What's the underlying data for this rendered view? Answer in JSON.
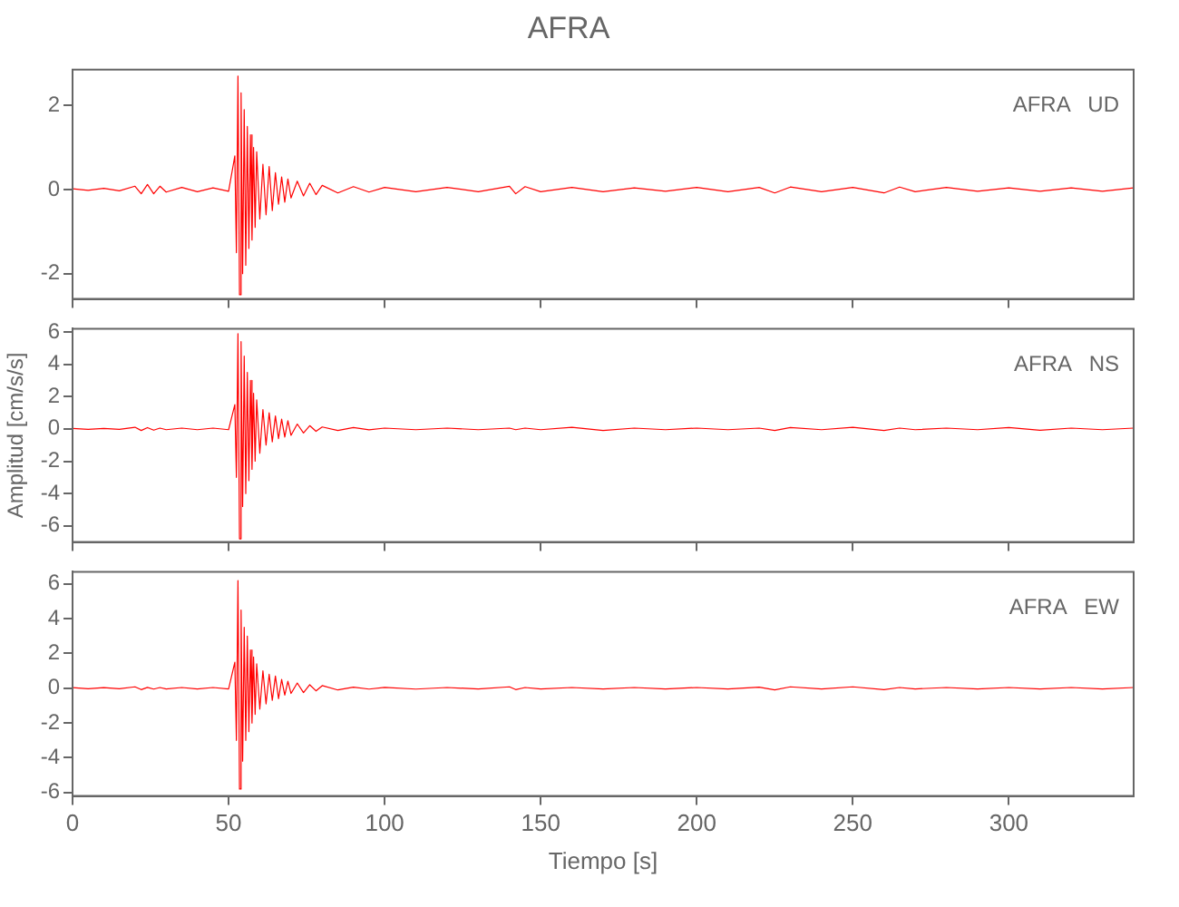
{
  "chart_data": [
    {
      "type": "line",
      "title": "AFRA",
      "annotations": [
        "AFRA   UD"
      ],
      "x": [
        0,
        5,
        10,
        15,
        20,
        22,
        24,
        26,
        28,
        30,
        35,
        40,
        45,
        50,
        52,
        52.5,
        53,
        53.5,
        54,
        54.5,
        55,
        55.5,
        56,
        56.5,
        57,
        57.5,
        58,
        58.5,
        59,
        60,
        61,
        62,
        63,
        64,
        65,
        66,
        67,
        68,
        69,
        70,
        72,
        74,
        76,
        78,
        80,
        85,
        90,
        95,
        100,
        110,
        120,
        130,
        140,
        142,
        145,
        150,
        160,
        170,
        180,
        190,
        200,
        210,
        220,
        225,
        230,
        240,
        250,
        260,
        265,
        270,
        280,
        290,
        300,
        310,
        320,
        330,
        340
      ],
      "series": [
        {
          "color": "#ff0000",
          "values": [
            0.02,
            -0.02,
            0.03,
            -0.03,
            0.08,
            -0.1,
            0.12,
            -0.1,
            0.08,
            -0.06,
            0.05,
            -0.05,
            0.04,
            -0.04,
            0.8,
            -1.5,
            2.7,
            -2.5,
            2.3,
            -2.0,
            1.9,
            -1.8,
            1.5,
            -1.4,
            1.3,
            -1.2,
            1.0,
            -0.9,
            0.9,
            -0.7,
            0.6,
            -0.6,
            0.55,
            -0.5,
            0.4,
            -0.35,
            0.3,
            -0.3,
            0.25,
            -0.2,
            0.2,
            -0.15,
            0.15,
            -0.12,
            0.1,
            -0.08,
            0.07,
            -0.06,
            0.05,
            -0.05,
            0.05,
            -0.05,
            0.08,
            -0.1,
            0.07,
            -0.05,
            0.05,
            -0.05,
            0.04,
            -0.04,
            0.05,
            -0.05,
            0.05,
            -0.08,
            0.06,
            -0.05,
            0.05,
            -0.08,
            0.06,
            -0.05,
            0.05,
            -0.04,
            0.04,
            -0.04,
            0.04,
            -0.04,
            0.04
          ]
        }
      ],
      "xlim": [
        0,
        340
      ],
      "xticks": [
        0,
        50,
        100,
        150,
        200,
        250,
        300
      ],
      "ylim": [
        -2.6,
        2.85
      ],
      "yticks": [
        -2,
        0,
        2
      ],
      "tick_labels": "y",
      "grid": false,
      "legend": false,
      "marker": "none",
      "line_style": "solid"
    },
    {
      "type": "line",
      "ylabel": "Amplitud [cm/s/s]",
      "annotations": [
        "AFRA   NS"
      ],
      "x": [
        0,
        5,
        10,
        15,
        20,
        22,
        24,
        26,
        28,
        30,
        35,
        40,
        45,
        50,
        52,
        52.5,
        53,
        53.5,
        54,
        54.5,
        55,
        55.5,
        56,
        56.5,
        57,
        57.5,
        58,
        58.5,
        59,
        60,
        61,
        62,
        63,
        64,
        65,
        66,
        67,
        68,
        69,
        70,
        72,
        74,
        76,
        78,
        80,
        85,
        90,
        95,
        100,
        110,
        120,
        130,
        140,
        142,
        145,
        150,
        160,
        170,
        180,
        190,
        200,
        210,
        220,
        225,
        230,
        240,
        250,
        260,
        265,
        270,
        280,
        290,
        300,
        310,
        320,
        330,
        340
      ],
      "series": [
        {
          "color": "#ff0000",
          "values": [
            0.03,
            -0.03,
            0.03,
            -0.03,
            0.1,
            -0.1,
            0.08,
            -0.08,
            0.05,
            -0.05,
            0.05,
            -0.05,
            0.05,
            -0.05,
            1.5,
            -3,
            5.9,
            -6.8,
            5.4,
            -4.8,
            4.5,
            -4,
            3.5,
            -3.2,
            3,
            -2.5,
            2.2,
            -2,
            1.8,
            -1.5,
            1.2,
            -1,
            1,
            -0.8,
            0.8,
            -0.6,
            0.6,
            -0.5,
            0.5,
            -0.4,
            0.3,
            -0.25,
            0.2,
            -0.15,
            0.12,
            -0.1,
            0.08,
            -0.06,
            0.05,
            -0.05,
            0.05,
            -0.05,
            0.05,
            -0.05,
            0.05,
            -0.05,
            0.1,
            -0.1,
            0.05,
            -0.05,
            0.05,
            -0.05,
            0.05,
            -0.1,
            0.08,
            -0.05,
            0.1,
            -0.1,
            0.05,
            -0.05,
            0.05,
            -0.05,
            0.08,
            -0.08,
            0.05,
            -0.05,
            0.05
          ]
        }
      ],
      "xlim": [
        0,
        340
      ],
      "xticks": [
        0,
        50,
        100,
        150,
        200,
        250,
        300
      ],
      "ylim": [
        -7,
        6.2
      ],
      "yticks": [
        -6,
        -4,
        -2,
        0,
        2,
        4,
        6
      ],
      "tick_labels": "y",
      "grid": false,
      "legend": false,
      "marker": "none",
      "line_style": "solid"
    },
    {
      "type": "line",
      "xlabel": "Tiempo [s]",
      "annotations": [
        "AFRA   EW"
      ],
      "x": [
        0,
        5,
        10,
        15,
        20,
        22,
        24,
        26,
        28,
        30,
        35,
        40,
        45,
        50,
        52,
        52.5,
        53,
        53.5,
        54,
        54.5,
        55,
        55.5,
        56,
        56.5,
        57,
        57.5,
        58,
        58.5,
        59,
        60,
        61,
        62,
        63,
        64,
        65,
        66,
        67,
        68,
        69,
        70,
        72,
        74,
        76,
        78,
        80,
        85,
        90,
        95,
        100,
        110,
        120,
        130,
        140,
        142,
        145,
        150,
        160,
        170,
        180,
        190,
        200,
        210,
        220,
        225,
        230,
        240,
        250,
        260,
        265,
        270,
        280,
        290,
        300,
        310,
        320,
        330,
        340
      ],
      "series": [
        {
          "color": "#ff0000",
          "values": [
            0.03,
            -0.03,
            0.03,
            -0.03,
            0.08,
            -0.08,
            0.05,
            -0.05,
            0.04,
            -0.04,
            0.04,
            -0.04,
            0.04,
            -0.04,
            1.5,
            -3,
            6.2,
            -5.8,
            4.5,
            -4.2,
            3.5,
            -3,
            3,
            -2.5,
            2.2,
            -2,
            1.8,
            -1.5,
            1.4,
            -1.2,
            1.0,
            -0.9,
            0.8,
            -0.7,
            0.7,
            -0.6,
            0.5,
            -0.4,
            0.4,
            -0.3,
            0.3,
            -0.25,
            0.2,
            -0.15,
            0.15,
            -0.1,
            0.06,
            -0.05,
            0.05,
            -0.05,
            0.04,
            -0.04,
            0.08,
            -0.08,
            0.04,
            -0.04,
            0.04,
            -0.04,
            0.04,
            -0.04,
            0.04,
            -0.04,
            0.06,
            -0.1,
            0.08,
            -0.04,
            0.08,
            -0.08,
            0.04,
            -0.04,
            0.04,
            -0.04,
            0.04,
            -0.04,
            0.04,
            -0.04,
            0.04
          ]
        }
      ],
      "xlim": [
        0,
        340
      ],
      "xticks": [
        0,
        50,
        100,
        150,
        200,
        250,
        300
      ],
      "ylim": [
        -6.2,
        6.7
      ],
      "yticks": [
        -6,
        -4,
        -2,
        0,
        2,
        4,
        6
      ],
      "grid": false,
      "legend": false,
      "marker": "none",
      "line_style": "solid"
    }
  ]
}
